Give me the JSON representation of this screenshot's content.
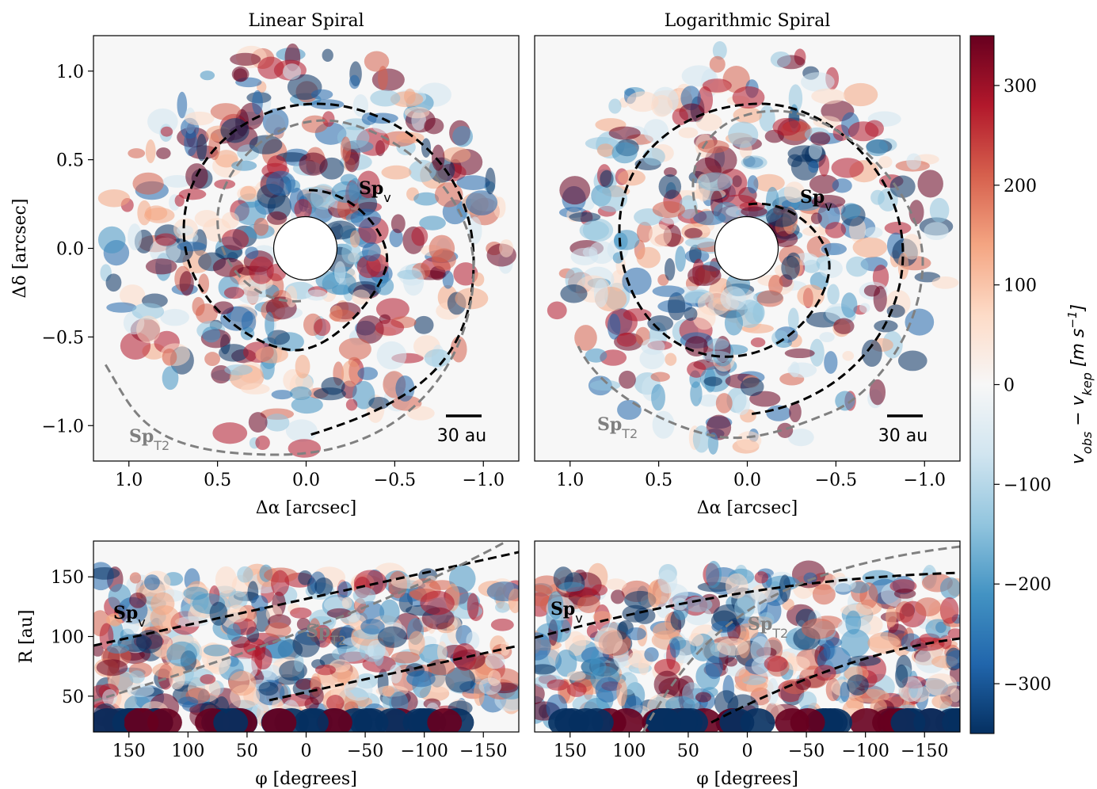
{
  "chart_data": [
    {
      "type": "map",
      "title": "Linear Spiral",
      "xlabel": "Δα [arcsec]",
      "ylabel": "Δδ [arcsec]",
      "xlim": [
        1.2,
        -1.2
      ],
      "ylim": [
        -1.2,
        1.2
      ],
      "xticks": [
        {
          "value": 1.0,
          "label": "1.0"
        },
        {
          "value": 0.5,
          "label": "0.5"
        },
        {
          "value": 0.0,
          "label": "0.0"
        },
        {
          "value": -0.5,
          "label": "−0.5"
        },
        {
          "value": -1.0,
          "label": "−1.0"
        }
      ],
      "yticks": [
        {
          "value": -1.0,
          "label": "−1.0"
        },
        {
          "value": -0.5,
          "label": "−0.5"
        },
        {
          "value": 0.0,
          "label": "0.0"
        },
        {
          "value": 0.5,
          "label": "0.5"
        },
        {
          "value": 1.0,
          "label": "1.0"
        }
      ],
      "annotations": [
        {
          "text": "Sp",
          "sub": "v",
          "color": "#000000"
        },
        {
          "text": "Sp",
          "sub": "T2",
          "color": "#808080"
        },
        {
          "text": "30 au",
          "color": "#000000"
        }
      ]
    },
    {
      "type": "map",
      "title": "Logarithmic Spiral",
      "xlabel": "Δα [arcsec]",
      "xlim": [
        1.2,
        -1.2
      ],
      "ylim": [
        -1.2,
        1.2
      ],
      "xticks": [
        {
          "value": 1.0,
          "label": "1.0"
        },
        {
          "value": 0.5,
          "label": "0.5"
        },
        {
          "value": 0.0,
          "label": "0.0"
        },
        {
          "value": -0.5,
          "label": "−0.5"
        },
        {
          "value": -1.0,
          "label": "−1.0"
        }
      ],
      "annotations": [
        {
          "text": "Sp",
          "sub": "v",
          "color": "#000000"
        },
        {
          "text": "Sp",
          "sub": "T2",
          "color": "#808080"
        },
        {
          "text": "30 au",
          "color": "#000000"
        }
      ]
    },
    {
      "type": "polar-map",
      "xlabel": "φ [degrees]",
      "ylabel": "R [au]",
      "xlim": [
        180,
        -180
      ],
      "ylim": [
        20,
        180
      ],
      "xticks": [
        150,
        100,
        50,
        0,
        {
          "value": -50,
          "label": "−50"
        },
        {
          "value": -100,
          "label": "−100"
        },
        {
          "value": -150,
          "label": "−150"
        }
      ],
      "yticks": [
        50,
        100,
        150
      ],
      "annotations": [
        {
          "text": "Sp",
          "sub": "v",
          "color": "#000000"
        },
        {
          "text": "Sp",
          "sub": "T2",
          "color": "#808080"
        }
      ]
    },
    {
      "type": "polar-map",
      "xlabel": "φ [degrees]",
      "xlim": [
        180,
        -180
      ],
      "ylim": [
        20,
        180
      ],
      "xticks": [
        150,
        100,
        50,
        0,
        {
          "value": -50,
          "label": "−50"
        },
        {
          "value": -100,
          "label": "−100"
        },
        {
          "value": -150,
          "label": "−150"
        }
      ],
      "annotations": [
        {
          "text": "Sp",
          "sub": "v",
          "color": "#000000"
        },
        {
          "text": "Sp",
          "sub": "T2",
          "color": "#808080"
        }
      ]
    },
    {
      "type": "colorbar",
      "ylim": [
        -350,
        350
      ],
      "yticks": [
        {
          "value": -300,
          "label": "−300"
        },
        {
          "value": -200,
          "label": "−200"
        },
        {
          "value": -100,
          "label": "−100"
        },
        0,
        100,
        200,
        300
      ],
      "label": [
        {
          "text": "v"
        },
        {
          "sub": "obs"
        },
        {
          "text": " − v"
        },
        {
          "sub": "kep"
        },
        {
          "text": " [m s"
        },
        {
          "sup": "−1"
        },
        {
          "text": "]"
        }
      ]
    }
  ]
}
